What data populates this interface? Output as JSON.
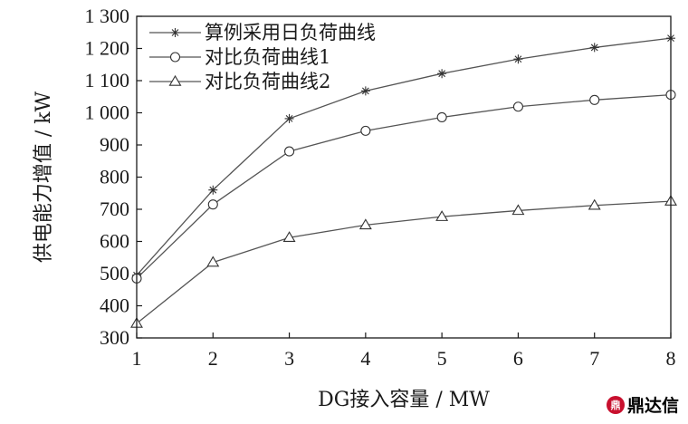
{
  "chart_data": {
    "type": "line",
    "xlabel": "DG接入容量 / MW",
    "ylabel": "供电能力增值 / kW",
    "xlim": [
      1,
      8
    ],
    "ylim": [
      300,
      1300
    ],
    "x": [
      1,
      2,
      3,
      4,
      5,
      6,
      7,
      8
    ],
    "x_ticks": [
      "1",
      "2",
      "3",
      "4",
      "5",
      "6",
      "7",
      "8"
    ],
    "y_ticks": [
      300,
      400,
      500,
      600,
      700,
      800,
      900,
      1000,
      1100,
      1200,
      1300
    ],
    "y_tick_labels": [
      "300",
      "400",
      "500",
      "600",
      "700",
      "800",
      "900",
      "1 000",
      "1 100",
      "1 200",
      "1 300"
    ],
    "grid": false,
    "legend_position": "top-left",
    "series": [
      {
        "name": "算例采用日负荷曲线",
        "marker": "star",
        "values": [
          495,
          760,
          982,
          1068,
          1122,
          1167,
          1203,
          1232
        ]
      },
      {
        "name": "对比负荷曲线1",
        "marker": "circle",
        "values": [
          485,
          715,
          880,
          944,
          986,
          1019,
          1040,
          1056
        ]
      },
      {
        "name": "对比负荷曲线2",
        "marker": "triangle",
        "values": [
          345,
          535,
          612,
          651,
          677,
          696,
          712,
          725
        ]
      }
    ]
  },
  "watermark": {
    "logo_text": "鼎",
    "text": "鼎达信"
  }
}
